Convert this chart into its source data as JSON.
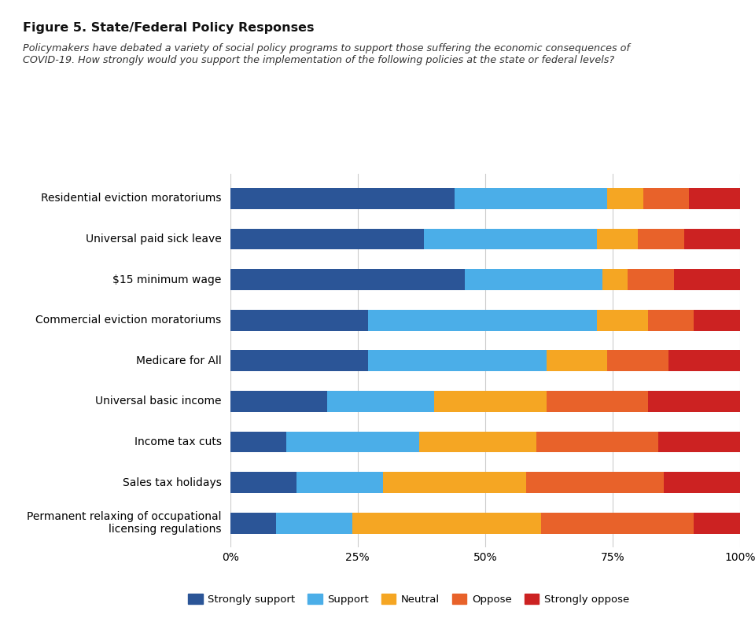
{
  "title": "Figure 5. State/Federal Policy Responses",
  "subtitle": "Policymakers have debated a variety of social policy programs to support those suffering the economic consequences of\nCOVID-19. How strongly would you support the implementation of the following policies at the state or federal levels?",
  "categories": [
    "Residential eviction moratoriums",
    "Universal paid sick leave",
    "$15 minimum wage",
    "Commercial eviction moratoriums",
    "Medicare for All",
    "Universal basic income",
    "Income tax cuts",
    "Sales tax holidays",
    "Permanent relaxing of occupational\nlicensing regulations"
  ],
  "series": {
    "Strongly support": [
      44,
      38,
      46,
      27,
      27,
      19,
      11,
      13,
      9
    ],
    "Support": [
      30,
      34,
      27,
      45,
      35,
      21,
      26,
      17,
      15
    ],
    "Neutral": [
      7,
      8,
      5,
      10,
      12,
      22,
      23,
      28,
      37
    ],
    "Oppose": [
      9,
      9,
      9,
      9,
      12,
      20,
      24,
      27,
      30
    ],
    "Strongly oppose": [
      10,
      11,
      13,
      9,
      14,
      18,
      16,
      15,
      9
    ]
  },
  "colors": {
    "Strongly support": "#2b5597",
    "Support": "#4baee8",
    "Neutral": "#f5a623",
    "Oppose": "#e8622a",
    "Strongly oppose": "#cc2222"
  },
  "legend_order": [
    "Strongly support",
    "Support",
    "Neutral",
    "Oppose",
    "Strongly oppose"
  ],
  "xlim": [
    0,
    100
  ],
  "xticks": [
    0,
    25,
    50,
    75,
    100
  ],
  "xticklabels": [
    "0%",
    "25%",
    "50%",
    "75%",
    "100%"
  ],
  "background_color": "#ffffff",
  "grid_color": "#cccccc"
}
